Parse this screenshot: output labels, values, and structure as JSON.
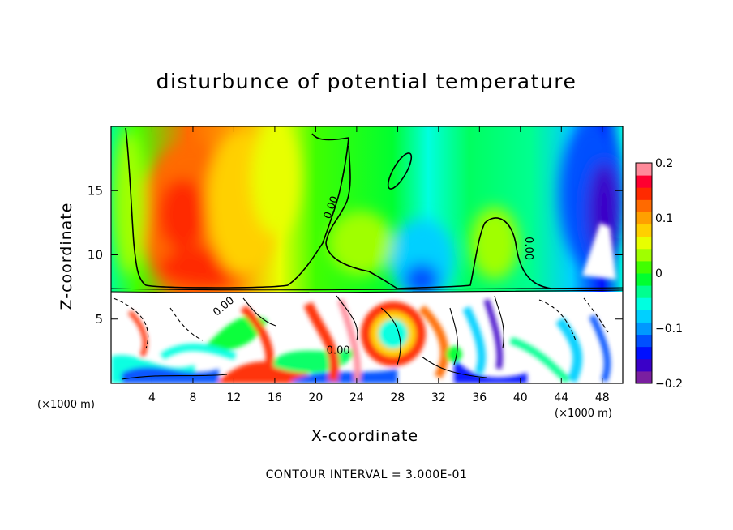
{
  "chart_data": {
    "type": "heatmap",
    "title": "disturbunce of potential temperature",
    "xlabel": "X-coordinate",
    "ylabel": "Z-coordinate",
    "x_unit": "(×1000 m)",
    "contour_note": "CONTOUR INTERVAL = 3.000E-01",
    "xlim": [
      0,
      50
    ],
    "ylim": [
      0,
      20
    ],
    "x_ticks": [
      4,
      8,
      12,
      16,
      20,
      24,
      28,
      32,
      36,
      40,
      44,
      48
    ],
    "y_ticks": [
      5,
      10,
      15
    ],
    "colorbar": {
      "range": [
        -0.2,
        0.2
      ],
      "tick_labels": [
        {
          "value": 0.2,
          "label": "0.2"
        },
        {
          "value": 0.1,
          "label": "0.1"
        },
        {
          "value": 0.0,
          "label": "0"
        },
        {
          "value": -0.1,
          "label": "-0.1"
        },
        {
          "value": -0.2,
          "label": "-0.2"
        }
      ],
      "colors": [
        "#7a1fa0",
        "#3a00c8",
        "#0010ff",
        "#0050ff",
        "#0098ff",
        "#00d0ff",
        "#00ffe0",
        "#00ff90",
        "#00ff30",
        "#40ff00",
        "#a0ff00",
        "#e8ff00",
        "#ffd000",
        "#ffa000",
        "#ff6a00",
        "#ff2a00",
        "#ff0030",
        "#ff8a9a"
      ]
    },
    "contour_labels": [
      {
        "x": 21.8,
        "z": 13.6,
        "label": "0.00",
        "angle": -70
      },
      {
        "x": 40.5,
        "z": 10.5,
        "label": "0.00",
        "angle": 90
      },
      {
        "x": 11.2,
        "z": 5.8,
        "label": "0.00",
        "angle": -40
      },
      {
        "x": 22.2,
        "z": 2.3,
        "label": "0.00",
        "angle": 0
      }
    ]
  }
}
